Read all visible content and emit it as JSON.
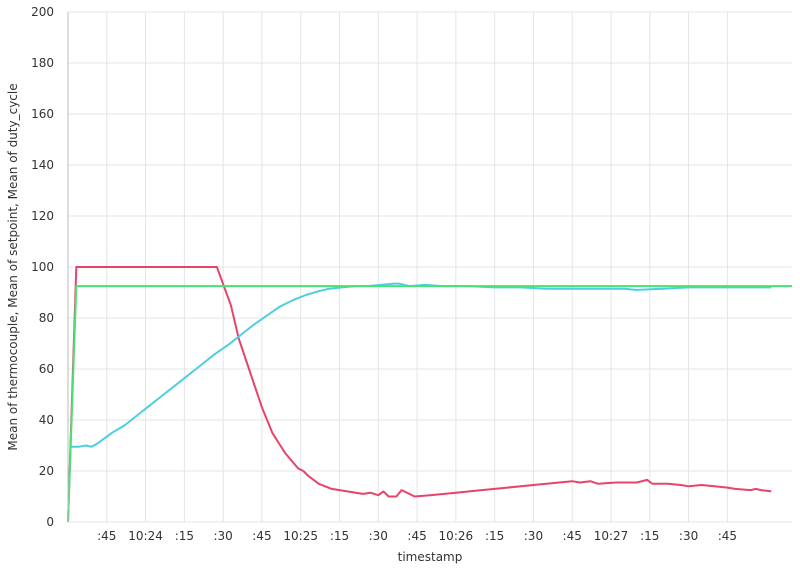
{
  "chart_data": {
    "type": "line",
    "xlabel": "timestamp",
    "ylabel": "Mean of thermocouple, Mean of setpoint, Mean of duty_cycle",
    "x_unit": "seconds",
    "xlim": [
      0,
      280
    ],
    "ylim": [
      0,
      200
    ],
    "y_ticks": [
      0,
      20,
      40,
      60,
      80,
      100,
      120,
      140,
      160,
      180,
      200
    ],
    "x_ticks": [
      {
        "x": 15,
        "label": ":45"
      },
      {
        "x": 30,
        "label": "10:24"
      },
      {
        "x": 45,
        "label": ":15"
      },
      {
        "x": 60,
        "label": ":30"
      },
      {
        "x": 75,
        "label": ":45"
      },
      {
        "x": 90,
        "label": "10:25"
      },
      {
        "x": 105,
        "label": ":15"
      },
      {
        "x": 120,
        "label": ":30"
      },
      {
        "x": 135,
        "label": ":45"
      },
      {
        "x": 150,
        "label": "10:26"
      },
      {
        "x": 165,
        "label": ":15"
      },
      {
        "x": 180,
        "label": ":30"
      },
      {
        "x": 195,
        "label": ":45"
      },
      {
        "x": 210,
        "label": "10:27"
      },
      {
        "x": 225,
        "label": ":15"
      },
      {
        "x": 240,
        "label": ":30"
      },
      {
        "x": 255,
        "label": ":45"
      }
    ],
    "grid": true,
    "series": [
      {
        "color": "#e8436a",
        "points": [
          [
            0,
            0
          ],
          [
            3.2,
            100
          ],
          [
            57.6,
            100
          ],
          [
            63,
            85
          ],
          [
            66,
            72
          ],
          [
            70,
            60
          ],
          [
            75,
            45
          ],
          [
            79,
            35
          ],
          [
            84,
            27
          ],
          [
            89,
            21
          ],
          [
            91,
            20
          ],
          [
            93,
            18
          ],
          [
            97,
            15
          ],
          [
            102,
            13
          ],
          [
            108,
            12
          ],
          [
            114,
            11
          ],
          [
            117,
            11.5
          ],
          [
            120,
            10.5
          ],
          [
            122,
            12
          ],
          [
            124,
            10
          ],
          [
            127,
            10
          ],
          [
            129,
            12.5
          ],
          [
            132,
            11
          ],
          [
            134,
            10
          ],
          [
            140,
            10.5
          ],
          [
            150,
            11.5
          ],
          [
            160,
            12.5
          ],
          [
            170,
            13.5
          ],
          [
            180,
            14.5
          ],
          [
            190,
            15.5
          ],
          [
            195,
            16
          ],
          [
            198,
            15.5
          ],
          [
            202,
            16
          ],
          [
            205,
            15
          ],
          [
            212,
            15.5
          ],
          [
            220,
            15.5
          ],
          [
            224,
            16.5
          ],
          [
            226,
            15
          ],
          [
            232,
            15
          ],
          [
            237,
            14.5
          ],
          [
            240,
            14
          ],
          [
            245,
            14.5
          ],
          [
            250,
            14
          ],
          [
            255,
            13.5
          ],
          [
            258,
            13
          ],
          [
            264,
            12.5
          ],
          [
            266,
            13
          ],
          [
            268,
            12.5
          ],
          [
            272,
            12
          ]
        ]
      },
      {
        "color": "#4ccfdf",
        "points": [
          [
            1,
            29.5
          ],
          [
            4,
            29.5
          ],
          [
            7,
            30
          ],
          [
            9,
            29.5
          ],
          [
            11,
            30.5
          ],
          [
            13,
            32
          ],
          [
            17,
            35
          ],
          [
            22,
            38
          ],
          [
            27,
            42
          ],
          [
            32,
            46
          ],
          [
            37,
            50
          ],
          [
            42,
            54
          ],
          [
            47,
            58
          ],
          [
            52,
            62
          ],
          [
            57,
            66
          ],
          [
            62,
            69.5
          ],
          [
            67,
            73.5
          ],
          [
            72,
            77.5
          ],
          [
            77,
            81
          ],
          [
            82,
            84.5
          ],
          [
            87,
            87
          ],
          [
            92,
            89
          ],
          [
            97,
            90.5
          ],
          [
            101,
            91.5
          ],
          [
            106,
            92
          ],
          [
            111,
            92.5
          ],
          [
            116,
            92.5
          ],
          [
            121,
            93
          ],
          [
            126,
            93.5
          ],
          [
            128,
            93.5
          ],
          [
            132,
            92.5
          ],
          [
            138,
            93
          ],
          [
            145,
            92.5
          ],
          [
            155,
            92.5
          ],
          [
            165,
            92
          ],
          [
            175,
            92
          ],
          [
            185,
            91.5
          ],
          [
            195,
            91.5
          ],
          [
            205,
            91.5
          ],
          [
            215,
            91.5
          ],
          [
            220,
            91
          ],
          [
            230,
            91.5
          ],
          [
            240,
            92
          ],
          [
            250,
            92
          ],
          [
            260,
            92
          ],
          [
            272,
            92
          ]
        ]
      },
      {
        "color": "#49e078",
        "points": [
          [
            0,
            0
          ],
          [
            3.2,
            92.5
          ],
          [
            280,
            92.5
          ]
        ]
      }
    ]
  }
}
